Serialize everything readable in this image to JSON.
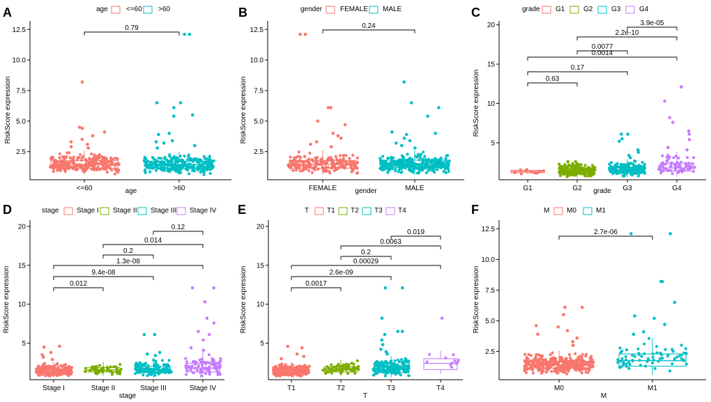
{
  "colors": {
    "c1": "#F8766D",
    "c2": "#7CAE00",
    "c3": "#00BFC4",
    "c4": "#C77CFF",
    "c2g": "#00BFC4"
  },
  "chart_data": [
    {
      "type": "boxplot",
      "panel_letter": "A",
      "xlabel": "age",
      "ylabel": "RiskScore expression",
      "legend_title": "age",
      "ylim": [
        0.2,
        13.2
      ],
      "yticks": [
        2.5,
        5.0,
        7.5,
        10.0,
        12.5
      ],
      "ytick_labels": [
        "2.5",
        "5.0",
        "7.5",
        "10.0",
        "12.5"
      ],
      "categories": [
        "<=60",
        ">60"
      ],
      "colors": [
        "#F8766D",
        "#00BFC4"
      ],
      "boxes": [
        {
          "q1": 1.15,
          "median": 1.45,
          "q3": 1.78,
          "lower": 0.65,
          "upper": 2.6,
          "n": 240,
          "outliers": [
            8.2,
            4.5,
            4.4,
            4.1,
            3.8,
            3.5,
            3.3,
            3.1,
            2.9,
            2.8
          ]
        },
        {
          "q1": 1.15,
          "median": 1.45,
          "q3": 1.72,
          "lower": 0.6,
          "upper": 2.5,
          "n": 270,
          "outliers": [
            12.1,
            12.1,
            6.5,
            6.5,
            6.1,
            5.5,
            5.4,
            4.0,
            3.9,
            3.4,
            3.3,
            3.2,
            3.0,
            2.8
          ]
        }
      ],
      "comparisons": [
        {
          "from": 1,
          "to": 2,
          "label": "0.79"
        }
      ]
    },
    {
      "type": "boxplot",
      "panel_letter": "B",
      "xlabel": "gender",
      "ylabel": "RiskScore expression",
      "legend_title": "gender",
      "ylim": [
        0.2,
        13.2
      ],
      "yticks": [
        2.5,
        5.0,
        7.5,
        10.0,
        12.5
      ],
      "ytick_labels": [
        "2.5",
        "5.0",
        "7.5",
        "10.0",
        "12.5"
      ],
      "categories": [
        "FEMALE",
        "MALE"
      ],
      "colors": [
        "#F8766D",
        "#00BFC4"
      ],
      "boxes": [
        {
          "q1": 1.15,
          "median": 1.45,
          "q3": 1.78,
          "lower": 0.65,
          "upper": 2.6,
          "n": 190,
          "outliers": [
            12.1,
            12.1,
            6.1,
            6.1,
            5.0,
            4.7,
            4.0,
            3.8,
            3.6,
            3.3,
            3.1,
            2.9
          ]
        },
        {
          "q1": 1.2,
          "median": 1.5,
          "q3": 1.8,
          "lower": 0.6,
          "upper": 2.6,
          "n": 320,
          "outliers": [
            8.2,
            6.5,
            6.1,
            5.4,
            4.1,
            4.0,
            3.9,
            3.6,
            3.4,
            3.2,
            3.0,
            2.8
          ]
        }
      ],
      "comparisons": [
        {
          "from": 1,
          "to": 2,
          "label": "0.24"
        }
      ]
    },
    {
      "type": "boxplot",
      "panel_letter": "C",
      "xlabel": "grade",
      "ylabel": "RiskScore expression",
      "legend_title": "grade",
      "ylim": [
        0.3,
        20.5
      ],
      "yticks": [
        5,
        10,
        15,
        20
      ],
      "ytick_labels": [
        "5",
        "10",
        "15",
        "20"
      ],
      "categories": [
        "G1",
        "G2",
        "G3",
        "G4"
      ],
      "colors": [
        "#F8766D",
        "#7CAE00",
        "#00BFC4",
        "#C77CFF"
      ],
      "boxes": [
        {
          "q1": 1.2,
          "median": 1.35,
          "q3": 1.5,
          "lower": 1.0,
          "upper": 1.8,
          "n": 12,
          "outliers": []
        },
        {
          "q1": 1.15,
          "median": 1.4,
          "q3": 1.7,
          "lower": 0.6,
          "upper": 2.5,
          "n": 220,
          "outliers": [
            2.6,
            2.6
          ]
        },
        {
          "q1": 1.2,
          "median": 1.5,
          "q3": 1.9,
          "lower": 0.7,
          "upper": 2.9,
          "n": 200,
          "outliers": [
            6.1,
            6.1,
            5.5,
            5.2,
            4.1,
            3.8,
            3.4,
            3.1
          ]
        },
        {
          "q1": 1.4,
          "median": 1.8,
          "q3": 2.4,
          "lower": 0.7,
          "upper": 3.9,
          "n": 75,
          "outliers": [
            12.1,
            12.1,
            10.3,
            8.2,
            7.6,
            6.5,
            6.1,
            5.4,
            4.4,
            4.1
          ]
        }
      ],
      "comparisons": [
        {
          "from": 3,
          "to": 4,
          "label": "3.9e-05"
        },
        {
          "from": 2,
          "to": 4,
          "label": "2.2e-10"
        },
        {
          "from": 2,
          "to": 3,
          "label": "0.0077"
        },
        {
          "from": 1,
          "to": 4,
          "label": "0.0014"
        },
        {
          "from": 1,
          "to": 3,
          "label": "0.17"
        },
        {
          "from": 1,
          "to": 2,
          "label": "0.63"
        }
      ]
    },
    {
      "type": "boxplot",
      "panel_letter": "D",
      "xlabel": "stage",
      "ylabel": "RiskScore expression",
      "legend_title": "stage",
      "ylim": [
        0.3,
        20.8
      ],
      "yticks": [
        5,
        10,
        15,
        20
      ],
      "ytick_labels": [
        "5",
        "10",
        "15",
        "20"
      ],
      "categories": [
        "Stage I",
        "Stage II",
        "Stage III",
        "Stage IV"
      ],
      "colors": [
        "#F8766D",
        "#7CAE00",
        "#00BFC4",
        "#C77CFF"
      ],
      "boxes": [
        {
          "q1": 1.15,
          "median": 1.4,
          "q3": 1.7,
          "lower": 0.6,
          "upper": 2.6,
          "n": 230,
          "outliers": [
            4.6,
            4.5,
            3.8,
            3.5,
            3.2,
            2.9
          ]
        },
        {
          "q1": 1.3,
          "median": 1.55,
          "q3": 1.85,
          "lower": 0.8,
          "upper": 2.6,
          "n": 55,
          "outliers": []
        },
        {
          "q1": 1.2,
          "median": 1.55,
          "q3": 2.0,
          "lower": 0.6,
          "upper": 3.1,
          "n": 120,
          "outliers": [
            6.1,
            6.1,
            3.8,
            3.6,
            3.4
          ]
        },
        {
          "q1": 1.3,
          "median": 1.8,
          "q3": 2.4,
          "lower": 0.6,
          "upper": 3.9,
          "n": 90,
          "outliers": [
            12.1,
            12.1,
            10.3,
            8.2,
            7.6,
            6.5,
            6.1,
            5.4,
            4.4,
            4.1
          ]
        }
      ],
      "comparisons": [
        {
          "from": 3,
          "to": 4,
          "label": "0.12"
        },
        {
          "from": 2,
          "to": 4,
          "label": "0.014"
        },
        {
          "from": 2,
          "to": 3,
          "label": "0.2"
        },
        {
          "from": 1,
          "to": 4,
          "label": "1.3e-08"
        },
        {
          "from": 1,
          "to": 3,
          "label": "9.4e-08"
        },
        {
          "from": 1,
          "to": 2,
          "label": "0.012"
        }
      ]
    },
    {
      "type": "boxplot",
      "panel_letter": "E",
      "xlabel": "T",
      "ylabel": "RiskScore expression",
      "legend_title": "T",
      "ylim": [
        0.3,
        20.8
      ],
      "yticks": [
        5,
        10,
        15,
        20
      ],
      "ytick_labels": [
        "5",
        "10",
        "15",
        "20"
      ],
      "categories": [
        "T1",
        "T2",
        "T3",
        "T4"
      ],
      "colors": [
        "#F8766D",
        "#7CAE00",
        "#00BFC4",
        "#C77CFF"
      ],
      "boxes": [
        {
          "q1": 1.15,
          "median": 1.4,
          "q3": 1.7,
          "lower": 0.6,
          "upper": 2.6,
          "n": 250,
          "outliers": [
            4.6,
            4.4,
            3.6,
            3.3,
            3.0
          ]
        },
        {
          "q1": 1.3,
          "median": 1.6,
          "q3": 1.95,
          "lower": 0.8,
          "upper": 2.9,
          "n": 65,
          "outliers": []
        },
        {
          "q1": 1.2,
          "median": 1.6,
          "q3": 2.1,
          "lower": 0.6,
          "upper": 3.3,
          "n": 170,
          "outliers": [
            12.1,
            12.1,
            8.2,
            6.5,
            6.5,
            6.1,
            5.4,
            4.8,
            4.2,
            3.9,
            3.6
          ]
        },
        {
          "q1": 1.6,
          "median": 2.4,
          "q3": 3.0,
          "lower": 1.1,
          "upper": 4.0,
          "n": 11,
          "outliers": [
            8.2
          ]
        }
      ],
      "comparisons": [
        {
          "from": 3,
          "to": 4,
          "label": "0.019"
        },
        {
          "from": 2,
          "to": 4,
          "label": "0.0063"
        },
        {
          "from": 2,
          "to": 3,
          "label": "0.2"
        },
        {
          "from": 1,
          "to": 4,
          "label": "0.00029"
        },
        {
          "from": 1,
          "to": 3,
          "label": "2.6e-09"
        },
        {
          "from": 1,
          "to": 2,
          "label": "0.0017"
        }
      ]
    },
    {
      "type": "boxplot",
      "panel_letter": "F",
      "xlabel": "M",
      "ylabel": "RiskScore expression",
      "legend_title": "M",
      "ylim": [
        0.2,
        13.2
      ],
      "yticks": [
        2.5,
        5.0,
        7.5,
        10.0,
        12.5
      ],
      "ytick_labels": [
        "2.5",
        "5.0",
        "7.5",
        "10.0",
        "12.5"
      ],
      "categories": [
        "M0",
        "M1"
      ],
      "colors": [
        "#F8766D",
        "#00BFC4"
      ],
      "boxes": [
        {
          "q1": 1.15,
          "median": 1.4,
          "q3": 1.7,
          "lower": 0.6,
          "upper": 2.6,
          "n": 330,
          "outliers": [
            6.1,
            6.1,
            5.5,
            4.6,
            4.5,
            4.2,
            3.9,
            3.6,
            3.3,
            3.0
          ]
        },
        {
          "q1": 1.3,
          "median": 1.75,
          "q3": 2.3,
          "lower": 0.6,
          "upper": 3.6,
          "n": 70,
          "outliers": [
            12.1,
            12.1,
            8.2,
            8.2,
            6.5,
            5.4,
            5.2,
            4.7,
            4.1,
            3.9
          ]
        }
      ],
      "comparisons": [
        {
          "from": 1,
          "to": 2,
          "label": "2.7e-06"
        }
      ]
    }
  ]
}
